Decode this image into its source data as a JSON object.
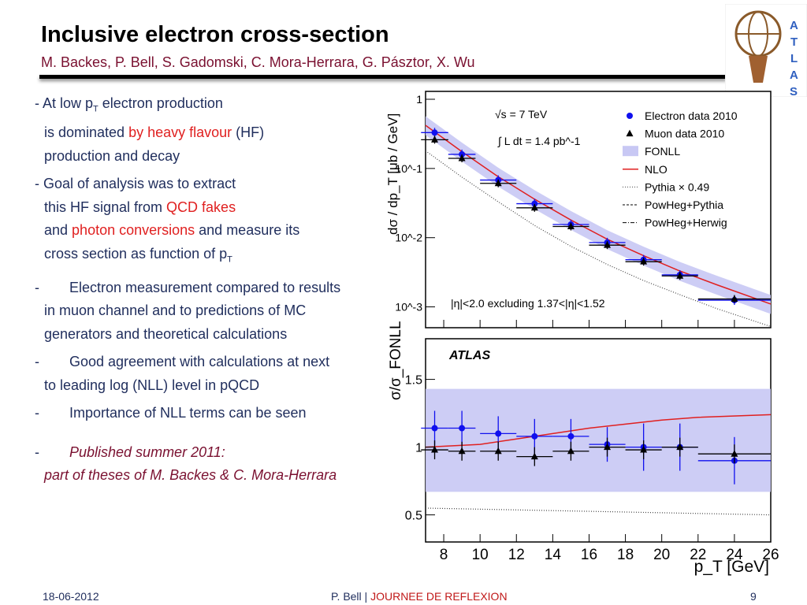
{
  "slide": {
    "title": "Inclusive electron cross-section",
    "authors": "M. Backes, P. Bell, S. Gadomski, C. Mora-Herrara, G. Pásztor, X. Wu",
    "logo_text": "ATLAS"
  },
  "bullets": {
    "b1_l1a": "- At low p",
    "b1_sub": "T",
    "b1_l1b": " electron production",
    "b1_l2a": "is dominated ",
    "b1_l2red": "by heavy flavour",
    "b1_l2b": " (HF)",
    "b1_l3": "production and decay",
    "b2_l1": "- Goal of analysis was to extract",
    "b2_l2a": "this HF signal from ",
    "b2_l2red": "QCD fakes",
    "b2_l3a": "and ",
    "b2_l3red": "photon conversions",
    "b2_l3b": " and measure its",
    "b2_l4a": "cross section as function of p",
    "b2_sub": "T",
    "b3_l1": "Electron measurement compared to results",
    "b3_l2": "in muon channel and to predictions of MC",
    "b3_l3": "generators and theoretical calculations",
    "b4_l1": "Good agreement with calculations at next",
    "b4_l2": "to leading log (NLL) level in pQCD",
    "b5_l1": "Importance of NLL terms can be seen",
    "b6_l1": "Published summer 2011:",
    "b6_l2": "part of theses of M. Backes & C. Mora-Herrara",
    "dash": "-"
  },
  "footer": {
    "date": "18-06-2012",
    "author": "P. Bell  |  ",
    "event": "JOURNEE DE REFLEXION",
    "page": "9"
  },
  "chart_data": {
    "type": "scatter",
    "top_panel": {
      "ylabel": "dσ / dp_T [μb / GeV]",
      "yscale": "log",
      "ylim": [
        0.0005,
        1.3
      ],
      "y_ticks": [
        "1",
        "10^-1",
        "10^-2",
        "10^-3"
      ],
      "annotations": [
        "√s = 7 TeV",
        "∫ L dt = 1.4 pb^-1",
        "|η|<2.0 excluding 1.37<|η|<1.52"
      ],
      "legend": [
        "Electron data 2010",
        "Muon data 2010",
        "FONLL",
        "NLO",
        "Pythia × 0.49",
        "PowHeg+Pythia",
        "PowHeg+Herwig"
      ],
      "legend_position": "top-right",
      "series": [
        {
          "name": "Electron data 2010",
          "x": [
            7.5,
            9,
            11,
            13,
            15,
            17,
            19,
            21,
            24
          ],
          "y": [
            0.33,
            0.16,
            0.068,
            0.031,
            0.0155,
            0.0085,
            0.0048,
            0.0029,
            0.00125
          ]
        },
        {
          "name": "Muon data 2010",
          "x": [
            7.5,
            9,
            11,
            13,
            15,
            17,
            19,
            21,
            24
          ],
          "y": [
            0.26,
            0.14,
            0.061,
            0.027,
            0.0145,
            0.0078,
            0.0045,
            0.0028,
            0.0013
          ]
        },
        {
          "name": "NLO",
          "x": [
            7,
            9,
            11,
            13,
            15,
            17,
            19,
            21,
            23,
            26
          ],
          "y": [
            0.42,
            0.175,
            0.076,
            0.036,
            0.018,
            0.0095,
            0.0055,
            0.0033,
            0.0021,
            0.0011
          ]
        },
        {
          "name": "Pythia × 0.49",
          "x": [
            7,
            9,
            11,
            13,
            15,
            17,
            19,
            21,
            23,
            26
          ],
          "y": [
            0.18,
            0.075,
            0.033,
            0.015,
            0.0075,
            0.0041,
            0.0024,
            0.0015,
            0.00095,
            0.00052
          ]
        }
      ]
    },
    "bottom_panel": {
      "ylabel": "σ/σ_FONLL",
      "ylim": [
        0.3,
        1.8
      ],
      "y_ticks": [
        "0.5",
        "1",
        "1.5"
      ],
      "label": "ATLAS",
      "series": [
        {
          "name": "Electron data 2010",
          "x": [
            7.5,
            9,
            11,
            13,
            15,
            17,
            19,
            21,
            24
          ],
          "y": [
            1.14,
            1.14,
            1.1,
            1.08,
            1.08,
            1.02,
            1.0,
            1.0,
            0.9
          ]
        },
        {
          "name": "Muon data 2010",
          "x": [
            7.5,
            9,
            11,
            13,
            15,
            17,
            19,
            21,
            24
          ],
          "y": [
            0.98,
            0.97,
            0.97,
            0.93,
            0.97,
            1.0,
            0.98,
            1.0,
            0.95
          ]
        },
        {
          "name": "NLO",
          "x": [
            7,
            10,
            12,
            14,
            16,
            18,
            20,
            22,
            26
          ],
          "y": [
            1.0,
            1.02,
            1.06,
            1.1,
            1.14,
            1.17,
            1.2,
            1.22,
            1.24
          ]
        },
        {
          "name": "Pythia × 0.49",
          "x": [
            7,
            26
          ],
          "y": [
            0.55,
            0.5
          ]
        }
      ]
    },
    "xlabel": "p_T [GeV]",
    "xlim": [
      7,
      26
    ],
    "x_ticks": [
      8,
      10,
      12,
      14,
      16,
      18,
      20,
      22,
      24,
      26
    ],
    "colors": {
      "electron": "#1010ee",
      "muon": "#000000",
      "fonll": "#c8c8f4",
      "nlo": "#e02020"
    }
  }
}
